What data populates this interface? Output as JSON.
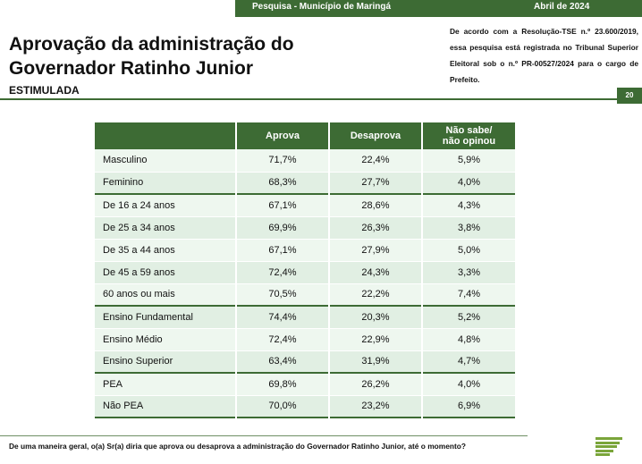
{
  "header": {
    "survey_label": "Pesquisa - Município de Maringá",
    "date": "Abril de 2024"
  },
  "title": "Aprovação da administração do Governador Ratinho Junior",
  "subtitle": "ESTIMULADA",
  "legal_note": "De acordo com a Resolução-TSE n.º 23.600/2019, essa pesquisa está registrada no Tribunal Superior Eleitoral sob o n.º PR-00527/2024 para o cargo de Prefeito.",
  "page_number": "20",
  "table": {
    "columns": [
      "",
      "Aprova",
      "Desaprova",
      "Não sabe/\nnão opinou"
    ],
    "rows": [
      [
        "Masculino",
        "71,7%",
        "22,4%",
        "5,9%"
      ],
      [
        "Feminino",
        "68,3%",
        "27,7%",
        "4,0%"
      ],
      [
        "De 16 a 24 anos",
        "67,1%",
        "28,6%",
        "4,3%"
      ],
      [
        "De 25 a 34 anos",
        "69,9%",
        "26,3%",
        "3,8%"
      ],
      [
        "De 35 a 44 anos",
        "67,1%",
        "27,9%",
        "5,0%"
      ],
      [
        "De 45 a 59 anos",
        "72,4%",
        "24,3%",
        "3,3%"
      ],
      [
        "60 anos ou mais",
        "70,5%",
        "22,2%",
        "7,4%"
      ],
      [
        "Ensino Fundamental",
        "74,4%",
        "20,3%",
        "5,2%"
      ],
      [
        "Ensino Médio",
        "72,4%",
        "22,9%",
        "4,8%"
      ],
      [
        "Ensino Superior",
        "63,4%",
        "31,9%",
        "4,7%"
      ],
      [
        "PEA",
        "69,8%",
        "26,2%",
        "4,0%"
      ],
      [
        "Não PEA",
        "70,0%",
        "23,2%",
        "6,9%"
      ]
    ]
  },
  "question": "De uma maneira geral, o(a) Sr(a) diria que aprova ou desaprova a administração do Governador Ratinho Junior, até o momento?",
  "colors": {
    "brand_green": "#3d6b34",
    "row_light": "#eef7ef",
    "row_mid": "#e1efe3",
    "logo_green": "#7aa53a"
  },
  "icons": {
    "logo": "stacked-bars-logo"
  }
}
